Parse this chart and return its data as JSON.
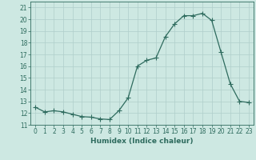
{
  "title": "",
  "xlabel": "Humidex (Indice chaleur)",
  "ylabel": "",
  "x_values": [
    0,
    1,
    2,
    3,
    4,
    5,
    6,
    7,
    8,
    9,
    10,
    11,
    12,
    13,
    14,
    15,
    16,
    17,
    18,
    19,
    20,
    21,
    22,
    23
  ],
  "y_values": [
    12.5,
    12.1,
    12.2,
    12.1,
    11.9,
    11.7,
    11.65,
    11.5,
    11.45,
    12.2,
    13.3,
    16.0,
    16.5,
    16.7,
    18.5,
    19.6,
    20.3,
    20.3,
    20.5,
    19.9,
    17.2,
    14.5,
    13.0,
    12.9
  ],
  "line_color": "#2e6b5e",
  "marker_color": "#2e6b5e",
  "bg_color": "#cde8e2",
  "grid_color": "#b0ceca",
  "xlim": [
    -0.5,
    23.5
  ],
  "ylim": [
    11,
    21.5
  ],
  "yticks": [
    11,
    12,
    13,
    14,
    15,
    16,
    17,
    18,
    19,
    20,
    21
  ],
  "xticks": [
    0,
    1,
    2,
    3,
    4,
    5,
    6,
    7,
    8,
    9,
    10,
    11,
    12,
    13,
    14,
    15,
    16,
    17,
    18,
    19,
    20,
    21,
    22,
    23
  ],
  "tick_fontsize": 5.5,
  "label_fontsize": 6.5,
  "marker_size": 2,
  "line_width": 0.9
}
